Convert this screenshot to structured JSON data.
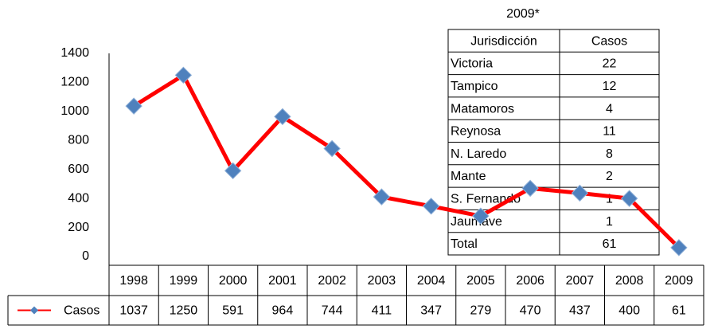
{
  "chart_data": {
    "type": "line",
    "categories": [
      "1998",
      "1999",
      "2000",
      "2001",
      "2002",
      "2003",
      "2004",
      "2005",
      "2006",
      "2007",
      "2008",
      "2009"
    ],
    "series": [
      {
        "name": "Casos",
        "color": "#ff0000",
        "marker_color": "#4f81bd",
        "values": [
          1037,
          1250,
          591,
          964,
          744,
          411,
          347,
          279,
          470,
          437,
          400,
          61
        ]
      }
    ],
    "ylim": [
      0,
      1400
    ],
    "yticks": [
      0,
      200,
      400,
      600,
      800,
      1000,
      1200,
      1400
    ],
    "grid": false
  },
  "table": {
    "title": "2009*",
    "header": [
      "Jurisdicción",
      "Casos"
    ],
    "rows": [
      [
        "Victoria",
        "22"
      ],
      [
        "Tampico",
        "12"
      ],
      [
        "Matamoros",
        "4"
      ],
      [
        "Reynosa",
        "11"
      ],
      [
        "N. Laredo",
        "8"
      ],
      [
        "Mante",
        "2"
      ],
      [
        "S. Fernando",
        "1"
      ],
      [
        "Jaumave",
        "1"
      ],
      [
        "Total",
        "61"
      ]
    ]
  }
}
